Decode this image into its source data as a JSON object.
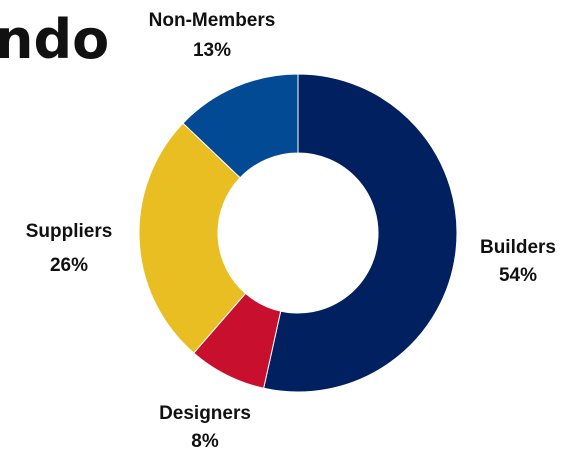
{
  "header": {
    "brand_fragment": "ndo"
  },
  "chart_data": {
    "type": "pie",
    "donut": true,
    "title": "",
    "categories": [
      "Builders",
      "Designers",
      "Suppliers",
      "Non-Members"
    ],
    "values": [
      54,
      8,
      26,
      13
    ],
    "labels": [
      {
        "name": "Builders",
        "pct": "54%"
      },
      {
        "name": "Designers",
        "pct": "8%"
      },
      {
        "name": "Suppliers",
        "pct": "26%"
      },
      {
        "name": "Non-Members",
        "pct": "13%"
      }
    ],
    "colors": [
      "#002060",
      "#C8102E",
      "#E9BE22",
      "#034A94"
    ],
    "start_angle_deg": 0,
    "direction": "clockwise"
  }
}
